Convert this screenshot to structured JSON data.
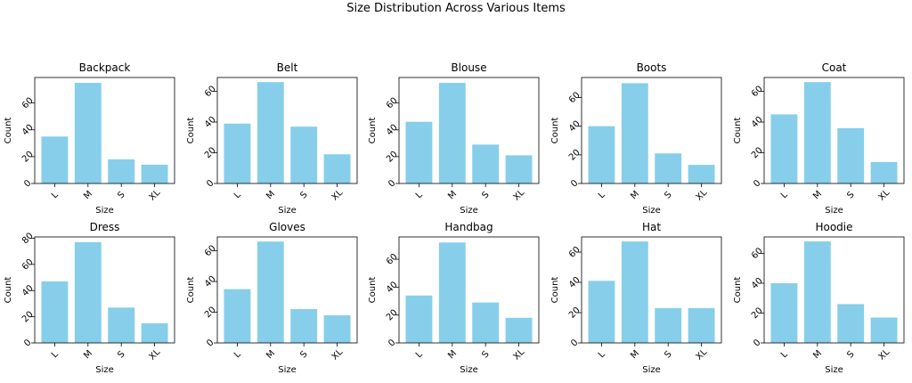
{
  "figure": {
    "title": "Size Distribution Across Various Items"
  },
  "chart_data": [
    {
      "type": "bar",
      "title": "Backpack",
      "categories": [
        "L",
        "M",
        "S",
        "XL"
      ],
      "values": [
        35,
        75,
        18,
        14
      ],
      "xlabel": "Size",
      "ylabel": "Count",
      "ylim": [
        0,
        79
      ],
      "yticks": [
        0,
        20,
        40,
        60
      ],
      "color": "#87CEEB"
    },
    {
      "type": "bar",
      "title": "Belt",
      "categories": [
        "L",
        "M",
        "S",
        "XL"
      ],
      "values": [
        39,
        66,
        37,
        19
      ],
      "xlabel": "Size",
      "ylabel": "Count",
      "ylim": [
        0,
        69
      ],
      "yticks": [
        0,
        20,
        40,
        60
      ],
      "color": "#87CEEB"
    },
    {
      "type": "bar",
      "title": "Blouse",
      "categories": [
        "L",
        "M",
        "S",
        "XL"
      ],
      "values": [
        46,
        75,
        29,
        21
      ],
      "xlabel": "Size",
      "ylabel": "Count",
      "ylim": [
        0,
        79
      ],
      "yticks": [
        0,
        20,
        40,
        60
      ],
      "color": "#87CEEB"
    },
    {
      "type": "bar",
      "title": "Boots",
      "categories": [
        "L",
        "M",
        "S",
        "XL"
      ],
      "values": [
        40,
        70,
        21,
        13
      ],
      "xlabel": "Size",
      "ylabel": "Count",
      "ylim": [
        0,
        74
      ],
      "yticks": [
        0,
        20,
        40,
        60
      ],
      "color": "#87CEEB"
    },
    {
      "type": "bar",
      "title": "Coat",
      "categories": [
        "L",
        "M",
        "S",
        "XL"
      ],
      "values": [
        45,
        66,
        36,
        14
      ],
      "xlabel": "Size",
      "ylabel": "Count",
      "ylim": [
        0,
        69
      ],
      "yticks": [
        0,
        20,
        40,
        60
      ],
      "color": "#87CEEB"
    },
    {
      "type": "bar",
      "title": "Dress",
      "categories": [
        "L",
        "M",
        "S",
        "XL"
      ],
      "values": [
        47,
        77,
        27,
        15
      ],
      "xlabel": "Size",
      "ylabel": "Count",
      "ylim": [
        0,
        81
      ],
      "yticks": [
        0,
        20,
        40,
        60,
        80
      ],
      "color": "#87CEEB"
    },
    {
      "type": "bar",
      "title": "Gloves",
      "categories": [
        "L",
        "M",
        "S",
        "XL"
      ],
      "values": [
        35,
        66,
        22,
        18
      ],
      "xlabel": "Size",
      "ylabel": "Count",
      "ylim": [
        0,
        69
      ],
      "yticks": [
        0,
        20,
        40,
        60
      ],
      "color": "#87CEEB"
    },
    {
      "type": "bar",
      "title": "Handbag",
      "categories": [
        "L",
        "M",
        "S",
        "XL"
      ],
      "values": [
        34,
        72,
        29,
        18
      ],
      "xlabel": "Size",
      "ylabel": "Count",
      "ylim": [
        0,
        76
      ],
      "yticks": [
        0,
        20,
        40,
        60
      ],
      "color": "#87CEEB"
    },
    {
      "type": "bar",
      "title": "Hat",
      "categories": [
        "L",
        "M",
        "S",
        "XL"
      ],
      "values": [
        41,
        67,
        23,
        23
      ],
      "xlabel": "Size",
      "ylabel": "Count",
      "ylim": [
        0,
        70
      ],
      "yticks": [
        0,
        20,
        40,
        60
      ],
      "color": "#87CEEB"
    },
    {
      "type": "bar",
      "title": "Hoodie",
      "categories": [
        "L",
        "M",
        "S",
        "XL"
      ],
      "values": [
        40,
        68,
        26,
        17
      ],
      "xlabel": "Size",
      "ylabel": "Count",
      "ylim": [
        0,
        71
      ],
      "yticks": [
        0,
        20,
        40,
        60
      ],
      "color": "#87CEEB"
    }
  ]
}
